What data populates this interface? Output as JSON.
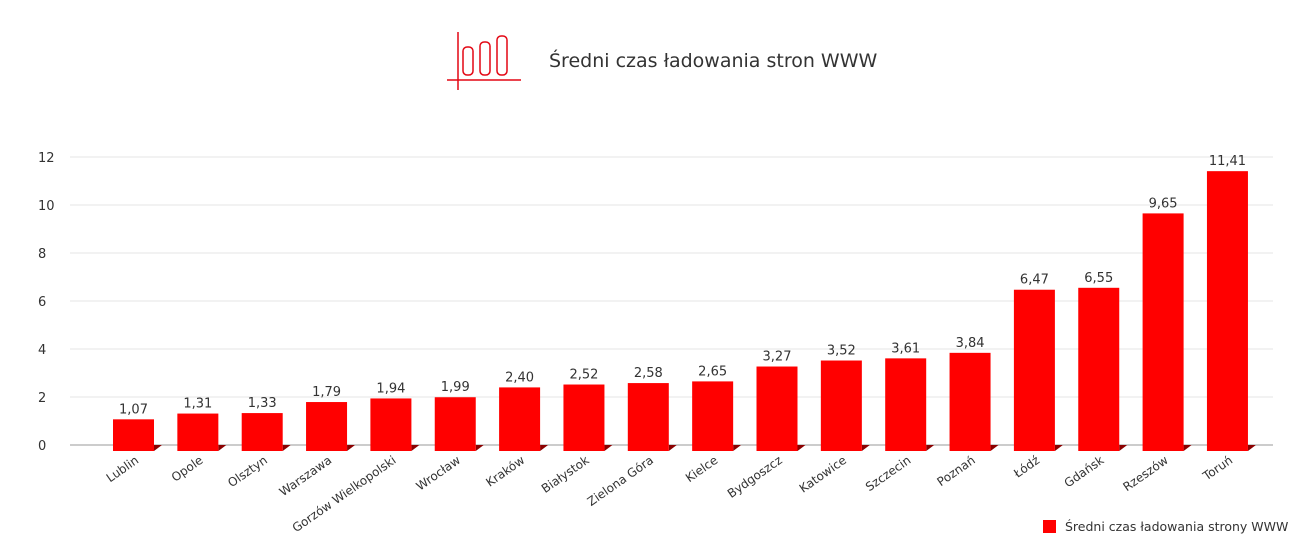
{
  "chart_data": {
    "type": "bar",
    "title": "Średni czas ładowania stron WWW",
    "categories": [
      "Lublin",
      "Opole",
      "Olsztyn",
      "Warszawa",
      "Gorzów Wielkopolski",
      "Wrocław",
      "Kraków",
      "Białystok",
      "Zielona Góra",
      "Kielce",
      "Bydgoszcz",
      "Katowice",
      "Szczecin",
      "Poznań",
      "Łódź",
      "Gdańsk",
      "Rzeszów",
      "Toruń"
    ],
    "series": [
      {
        "name": "Średni czas ładowania strony WWW",
        "values": [
          1.07,
          1.31,
          1.33,
          1.79,
          1.94,
          1.99,
          2.4,
          2.52,
          2.58,
          2.65,
          3.27,
          3.52,
          3.61,
          3.84,
          6.47,
          6.55,
          9.65,
          11.41
        ]
      }
    ],
    "data_labels": [
      "1,07",
      "1,31",
      "1,33",
      "1,79",
      "1,94",
      "1,99",
      "2,40",
      "2,52",
      "2,58",
      "2,65",
      "3,27",
      "3,52",
      "3,61",
      "3,84",
      "6,47",
      "6,55",
      "9,65",
      "11,41"
    ],
    "yticks": [
      "0",
      "2",
      "4",
      "6",
      "8",
      "10",
      "12"
    ],
    "ylim": [
      0,
      12
    ],
    "grid": true,
    "legend_position": "bottom-right",
    "bar_color": "#ff0000",
    "xlabel": "",
    "ylabel": ""
  }
}
